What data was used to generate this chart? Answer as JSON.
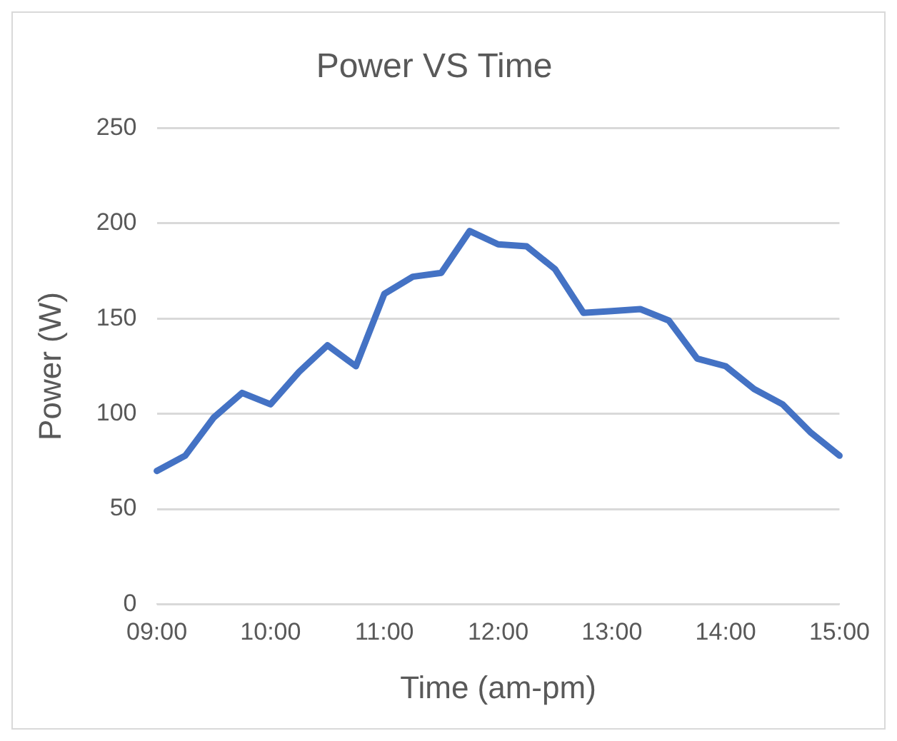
{
  "chart_data": {
    "type": "line",
    "title": "Power VS Time",
    "xlabel": "Time (am-pm)",
    "ylabel": "Power (W)",
    "categories": [
      "09:00",
      null,
      null,
      null,
      "10:00",
      null,
      null,
      null,
      "11:00",
      null,
      null,
      null,
      "12:00",
      null,
      null,
      null,
      "13:00",
      null,
      null,
      null,
      "14:00",
      null,
      null,
      null,
      "15:00"
    ],
    "series": [
      {
        "color": "#4472c4",
        "values": [
          70,
          78,
          98,
          111,
          105,
          122,
          136,
          125,
          163,
          172,
          174,
          196,
          189,
          188,
          176,
          153,
          154,
          155,
          149,
          129,
          125,
          113,
          105,
          90,
          78
        ]
      }
    ],
    "ylim": [
      0,
      250
    ],
    "yticks": [
      0,
      50,
      100,
      150,
      200,
      250
    ],
    "grid": "y",
    "legend": false,
    "marker": "none",
    "line_style": "solid"
  }
}
